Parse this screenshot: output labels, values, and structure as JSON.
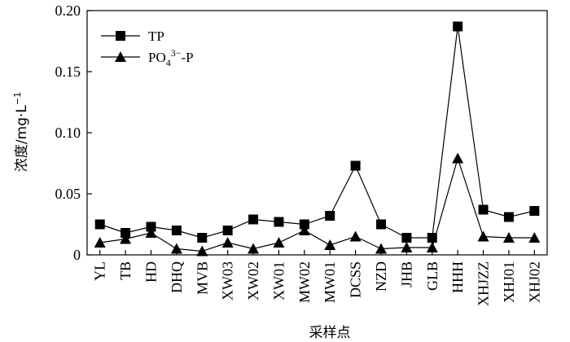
{
  "chart_data": {
    "type": "line",
    "categories": [
      "YL",
      "TB",
      "HD",
      "DHQ",
      "MVB",
      "XW03",
      "XW02",
      "XW01",
      "MW02",
      "MW01",
      "DCSS",
      "NZD",
      "JHB",
      "GLB",
      "HHH",
      "XHJZZ",
      "XHJ01",
      "XHJ02"
    ],
    "series": [
      {
        "name": "TP",
        "marker": "square",
        "values": [
          0.025,
          0.018,
          0.023,
          0.02,
          0.014,
          0.02,
          0.029,
          0.027,
          0.025,
          0.032,
          0.073,
          0.025,
          0.014,
          0.014,
          0.187,
          0.037,
          0.031,
          0.036
        ]
      },
      {
        "name": "PO4 3−-P",
        "legend_label": {
          "base": "PO",
          "sub": "4",
          "sup": "3−",
          "tail": "-P"
        },
        "marker": "triangle",
        "values": [
          0.01,
          0.013,
          0.018,
          0.005,
          0.003,
          0.01,
          0.005,
          0.01,
          0.02,
          0.008,
          0.015,
          0.005,
          0.006,
          0.006,
          0.079,
          0.015,
          0.014,
          0.014
        ]
      }
    ],
    "ylim": [
      0,
      0.2
    ],
    "yticks": [
      "0",
      "0.05",
      "0.10",
      "0.15",
      "0.20"
    ],
    "ytick_values": [
      0,
      0.05,
      0.1,
      0.15,
      0.2
    ],
    "xlabel": "采样点",
    "ylabel": "浓度/mg·L",
    "ylabel_sup": "−1",
    "legend_position": "top-left",
    "grid": false,
    "colors": {
      "line": "#000000",
      "marker": "#000000",
      "axis": "#000000"
    }
  }
}
